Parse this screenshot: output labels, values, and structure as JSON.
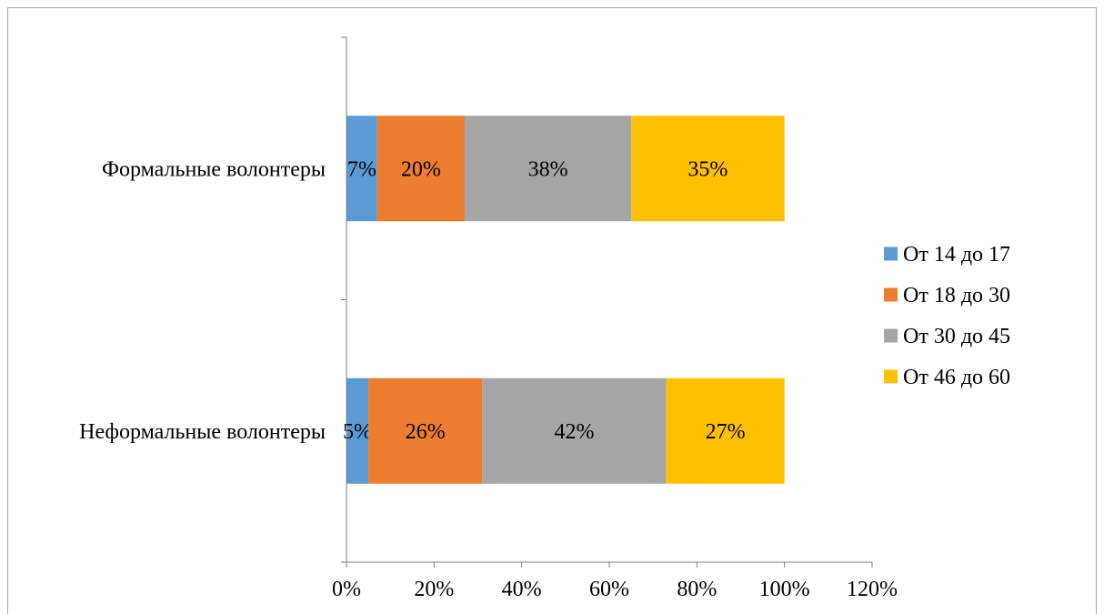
{
  "chart_data": {
    "type": "bar",
    "orientation": "horizontal",
    "stacked": true,
    "title": "",
    "xlabel": "",
    "ylabel": "",
    "categories": [
      "Формальные волонтеры",
      "Неформальные волонтеры"
    ],
    "series": [
      {
        "name": "От 14 до 17",
        "color": "#5b9bd5",
        "values": [
          7,
          5
        ],
        "labels": [
          "7%",
          "5%"
        ]
      },
      {
        "name": "От 18 до 30",
        "color": "#ed7d31",
        "values": [
          20,
          26
        ],
        "labels": [
          "20%",
          "26%"
        ]
      },
      {
        "name": "От 30 до 45",
        "color": "#a5a5a5",
        "values": [
          38,
          42
        ],
        "labels": [
          "38%",
          "42%"
        ]
      },
      {
        "name": "От 46 до 60",
        "color": "#ffc000",
        "values": [
          35,
          27
        ],
        "labels": [
          "35%",
          "27%"
        ]
      }
    ],
    "xlim": [
      0,
      120
    ],
    "x_ticks": [
      "0%",
      "20%",
      "40%",
      "60%",
      "80%",
      "100%",
      "120%"
    ],
    "grid": false,
    "legend_position": "right",
    "axis_color": "#808080"
  }
}
